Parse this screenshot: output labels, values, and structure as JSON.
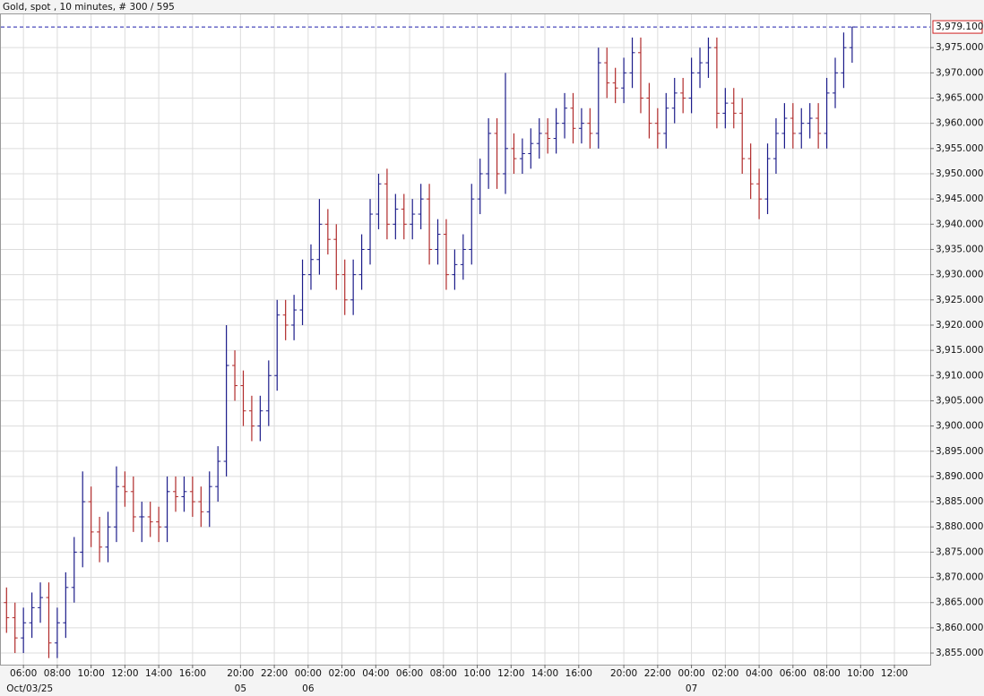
{
  "chart_data": {
    "type": "ohlc",
    "title": "Gold, spot , 10 minutes, # 300 / 595",
    "up_color": "#1c1c8a",
    "down_color": "#b02a2a",
    "grid": true,
    "xlim": [
      -2,
      327.7
    ],
    "ylim": [
      3852.7,
      3981.6
    ],
    "yticks": [
      {
        "value": 3855,
        "label": "3,855.000"
      },
      {
        "value": 3860,
        "label": "3,860.000"
      },
      {
        "value": 3865,
        "label": "3,865.000"
      },
      {
        "value": 3870,
        "label": "3,870.000"
      },
      {
        "value": 3875,
        "label": "3,875.000"
      },
      {
        "value": 3880,
        "label": "3,880.000"
      },
      {
        "value": 3885,
        "label": "3,885.000"
      },
      {
        "value": 3890,
        "label": "3,890.000"
      },
      {
        "value": 3895,
        "label": "3,895.000"
      },
      {
        "value": 3900,
        "label": "3,900.000"
      },
      {
        "value": 3905,
        "label": "3,905.000"
      },
      {
        "value": 3910,
        "label": "3,910.000"
      },
      {
        "value": 3915,
        "label": "3,915.000"
      },
      {
        "value": 3920,
        "label": "3,920.000"
      },
      {
        "value": 3925,
        "label": "3,925.000"
      },
      {
        "value": 3930,
        "label": "3,930.000"
      },
      {
        "value": 3935,
        "label": "3,935.000"
      },
      {
        "value": 3940,
        "label": "3,940.000"
      },
      {
        "value": 3945,
        "label": "3,945.000"
      },
      {
        "value": 3950,
        "label": "3,950.000"
      },
      {
        "value": 3955,
        "label": "3,955.000"
      },
      {
        "value": 3960,
        "label": "3,960.000"
      },
      {
        "value": 3965,
        "label": "3,965.000"
      },
      {
        "value": 3970,
        "label": "3,970.000"
      },
      {
        "value": 3975,
        "label": "3,975.000"
      }
    ],
    "xticks": [
      {
        "value": 6,
        "label": "06:00"
      },
      {
        "value": 18,
        "label": "08:00"
      },
      {
        "value": 30,
        "label": "10:00"
      },
      {
        "value": 42,
        "label": "12:00"
      },
      {
        "value": 54,
        "label": "14:00"
      },
      {
        "value": 66,
        "label": "16:00"
      },
      {
        "value": 83,
        "label": "20:00"
      },
      {
        "value": 95,
        "label": "22:00"
      },
      {
        "value": 107,
        "label": "00:00"
      },
      {
        "value": 119,
        "label": "02:00"
      },
      {
        "value": 131,
        "label": "04:00"
      },
      {
        "value": 143,
        "label": "06:00"
      },
      {
        "value": 155,
        "label": "08:00"
      },
      {
        "value": 167,
        "label": "10:00"
      },
      {
        "value": 179,
        "label": "12:00"
      },
      {
        "value": 191,
        "label": "14:00"
      },
      {
        "value": 203,
        "label": "16:00"
      },
      {
        "value": 219,
        "label": "20:00"
      },
      {
        "value": 231,
        "label": "22:00"
      },
      {
        "value": 243,
        "label": "00:00"
      },
      {
        "value": 255,
        "label": "02:00"
      },
      {
        "value": 267,
        "label": "04:00"
      },
      {
        "value": 279,
        "label": "06:00"
      },
      {
        "value": 291,
        "label": "08:00"
      },
      {
        "value": 303,
        "label": "10:00"
      },
      {
        "value": 315,
        "label": "12:00"
      }
    ],
    "date_ticks": [
      {
        "value": 0,
        "label": "Oct/03/25"
      },
      {
        "value": 83,
        "label": "05"
      },
      {
        "value": 107,
        "label": "06"
      },
      {
        "value": 243,
        "label": "07"
      }
    ],
    "last_price": {
      "value": 3979.1,
      "label": "3,979.100"
    },
    "x": [
      0,
      3,
      6,
      9,
      12,
      15,
      18,
      21,
      24,
      27,
      30,
      33,
      36,
      39,
      42,
      45,
      48,
      51,
      54,
      57,
      60,
      63,
      66,
      69,
      72,
      75,
      78,
      81,
      84,
      87,
      90,
      93,
      96,
      99,
      102,
      105,
      108,
      111,
      114,
      117,
      120,
      123,
      126,
      129,
      132,
      135,
      138,
      141,
      144,
      147,
      150,
      153,
      156,
      159,
      162,
      165,
      168,
      171,
      174,
      177,
      180,
      183,
      186,
      189,
      192,
      195,
      198,
      201,
      204,
      207,
      210,
      213,
      216,
      219,
      222,
      225,
      228,
      231,
      234,
      237,
      240,
      243,
      246,
      249,
      252,
      255,
      258,
      261,
      264,
      267,
      270,
      273,
      276,
      279,
      282,
      285,
      288,
      291,
      294,
      297,
      300
    ],
    "open": [
      3865,
      3862,
      3858,
      3861,
      3864,
      3866,
      3857,
      3861,
      3868,
      3875,
      3885,
      3879,
      3876,
      3880,
      3888,
      3887,
      3882,
      3882,
      3881,
      3880,
      3887,
      3886,
      3887,
      3885,
      3883,
      3888,
      3893,
      3912,
      3908,
      3903,
      3900,
      3903,
      3910,
      3922,
      3920,
      3923,
      3930,
      3933,
      3940,
      3937,
      3930,
      3925,
      3930,
      3935,
      3942,
      3948,
      3940,
      3943,
      3940,
      3942,
      3945,
      3935,
      3938,
      3930,
      3932,
      3935,
      3945,
      3950,
      3958,
      3950,
      3955,
      3953,
      3954,
      3956,
      3958,
      3957,
      3960,
      3963,
      3959,
      3960,
      3958,
      3972,
      3968,
      3967,
      3970,
      3974,
      3965,
      3960,
      3958,
      3963,
      3966,
      3965,
      3970,
      3972,
      3975,
      3962,
      3964,
      3962,
      3953,
      3948,
      3945,
      3953,
      3958,
      3961,
      3958,
      3960,
      3961,
      3958,
      3966,
      3970,
      3975
    ],
    "high": [
      3868,
      3865,
      3864,
      3867,
      3869,
      3869,
      3864,
      3871,
      3878,
      3891,
      3888,
      3882,
      3883,
      3892,
      3891,
      3890,
      3885,
      3885,
      3884,
      3890,
      3890,
      3890,
      3890,
      3888,
      3891,
      3896,
      3920,
      3915,
      3911,
      3906,
      3906,
      3913,
      3925,
      3925,
      3926,
      3933,
      3936,
      3945,
      3943,
      3940,
      3933,
      3933,
      3938,
      3945,
      3950,
      3951,
      3946,
      3946,
      3945,
      3948,
      3948,
      3941,
      3941,
      3935,
      3938,
      3948,
      3953,
      3961,
      3961,
      3970,
      3958,
      3957,
      3959,
      3961,
      3961,
      3963,
      3966,
      3966,
      3963,
      3963,
      3975,
      3975,
      3971,
      3973,
      3977,
      3977,
      3968,
      3963,
      3966,
      3969,
      3969,
      3973,
      3975,
      3977,
      3977,
      3967,
      3967,
      3965,
      3956,
      3951,
      3956,
      3961,
      3964,
      3964,
      3963,
      3964,
      3964,
      3969,
      3973,
      3978,
      3979.1
    ],
    "low": [
      3859,
      3855,
      3855,
      3858,
      3861,
      3854,
      3854,
      3858,
      3865,
      3872,
      3876,
      3873,
      3873,
      3877,
      3884,
      3879,
      3877,
      3878,
      3877,
      3877,
      3883,
      3883,
      3882,
      3880,
      3880,
      3885,
      3890,
      3905,
      3900,
      3897,
      3897,
      3900,
      3907,
      3917,
      3917,
      3920,
      3927,
      3930,
      3934,
      3927,
      3922,
      3922,
      3927,
      3932,
      3939,
      3937,
      3937,
      3937,
      3937,
      3939,
      3932,
      3932,
      3927,
      3927,
      3929,
      3932,
      3942,
      3947,
      3947,
      3946,
      3950,
      3950,
      3951,
      3953,
      3954,
      3954,
      3957,
      3956,
      3956,
      3955,
      3955,
      3965,
      3964,
      3964,
      3967,
      3962,
      3957,
      3955,
      3955,
      3960,
      3962,
      3962,
      3967,
      3969,
      3959,
      3959,
      3959,
      3950,
      3945,
      3941,
      3942,
      3950,
      3955,
      3955,
      3955,
      3957,
      3955,
      3955,
      3963,
      3967,
      3972
    ],
    "close": [
      3862,
      3858,
      3861,
      3864,
      3866,
      3857,
      3861,
      3868,
      3875,
      3885,
      3879,
      3876,
      3880,
      3888,
      3887,
      3882,
      3882,
      3881,
      3880,
      3887,
      3886,
      3887,
      3885,
      3883,
      3888,
      3893,
      3912,
      3908,
      3903,
      3900,
      3903,
      3910,
      3922,
      3920,
      3923,
      3930,
      3933,
      3940,
      3937,
      3930,
      3925,
      3930,
      3935,
      3942,
      3948,
      3940,
      3943,
      3940,
      3942,
      3945,
      3935,
      3938,
      3930,
      3932,
      3935,
      3945,
      3950,
      3958,
      3950,
      3955,
      3953,
      3954,
      3956,
      3958,
      3957,
      3960,
      3963,
      3959,
      3960,
      3958,
      3972,
      3968,
      3967,
      3970,
      3974,
      3965,
      3960,
      3958,
      3963,
      3966,
      3965,
      3970,
      3972,
      3975,
      3962,
      3964,
      3962,
      3953,
      3948,
      3945,
      3953,
      3958,
      3961,
      3958,
      3960,
      3961,
      3958,
      3966,
      3970,
      3975,
      3979.1
    ]
  }
}
